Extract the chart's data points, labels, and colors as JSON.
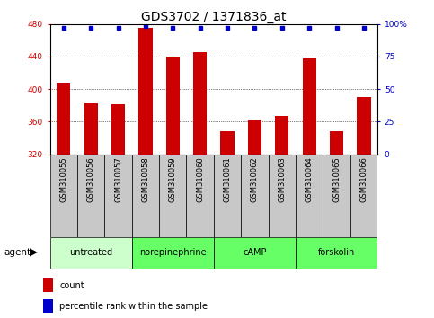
{
  "title": "GDS3702 / 1371836_at",
  "samples": [
    "GSM310055",
    "GSM310056",
    "GSM310057",
    "GSM310058",
    "GSM310059",
    "GSM310060",
    "GSM310061",
    "GSM310062",
    "GSM310063",
    "GSM310064",
    "GSM310065",
    "GSM310066"
  ],
  "counts": [
    408,
    383,
    381,
    475,
    440,
    445,
    348,
    362,
    367,
    438,
    348,
    390
  ],
  "percentiles": [
    97,
    97,
    97,
    98,
    97,
    97,
    97,
    97,
    97,
    97,
    97,
    97
  ],
  "bar_color": "#cc0000",
  "dot_color": "#0000cc",
  "ylim_left": [
    320,
    480
  ],
  "ylim_right": [
    0,
    100
  ],
  "yticks_left": [
    320,
    360,
    400,
    440,
    480
  ],
  "yticks_right": [
    0,
    25,
    50,
    75,
    100
  ],
  "yticklabels_right": [
    "0",
    "25",
    "50",
    "75",
    "100%"
  ],
  "groups": [
    {
      "label": "untreated",
      "indices": [
        0,
        1,
        2
      ],
      "color": "#ccffcc"
    },
    {
      "label": "norepinephrine",
      "indices": [
        3,
        4,
        5
      ],
      "color": "#66ff66"
    },
    {
      "label": "cAMP",
      "indices": [
        6,
        7,
        8
      ],
      "color": "#66ff66"
    },
    {
      "label": "forskolin",
      "indices": [
        9,
        10,
        11
      ],
      "color": "#66ff66"
    }
  ],
  "legend_items": [
    {
      "label": "count",
      "color": "#cc0000"
    },
    {
      "label": "percentile rank within the sample",
      "color": "#0000cc"
    }
  ],
  "bar_width": 0.5,
  "title_fontsize": 10,
  "tick_fontsize": 6.5,
  "label_fontsize": 7.5,
  "sample_box_color": "#c8c8c8",
  "group_border_color": "#000000"
}
